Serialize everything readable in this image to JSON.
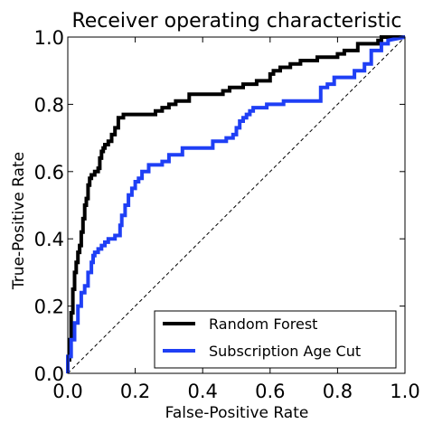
{
  "chart_data": {
    "type": "line",
    "title": "Receiver operating characteristic",
    "xlabel": "False-Positive Rate",
    "ylabel": "True-Positive Rate",
    "xlim": [
      0.0,
      1.0
    ],
    "ylim": [
      0.0,
      1.0
    ],
    "xticks": [
      "0.0",
      "0.2",
      "0.4",
      "0.6",
      "0.8",
      "1.0"
    ],
    "yticks": [
      "0.0",
      "0.2",
      "0.4",
      "0.6",
      "0.8",
      "1.0"
    ],
    "grid": false,
    "legend_position": "lower-right",
    "diagonal": {
      "style": "dashed",
      "color": "#000000",
      "x": [
        0.0,
        1.0
      ],
      "y": [
        0.0,
        1.0
      ]
    },
    "series": [
      {
        "name": "Random Forest",
        "color": "#000000",
        "x": [
          0.0,
          0.0,
          0.005,
          0.005,
          0.01,
          0.01,
          0.015,
          0.015,
          0.02,
          0.02,
          0.025,
          0.025,
          0.03,
          0.03,
          0.035,
          0.035,
          0.04,
          0.04,
          0.045,
          0.045,
          0.05,
          0.05,
          0.055,
          0.055,
          0.06,
          0.06,
          0.065,
          0.065,
          0.07,
          0.07,
          0.075,
          0.075,
          0.08,
          0.08,
          0.09,
          0.09,
          0.095,
          0.095,
          0.1,
          0.1,
          0.105,
          0.105,
          0.11,
          0.11,
          0.12,
          0.12,
          0.13,
          0.13,
          0.14,
          0.14,
          0.15,
          0.15,
          0.165,
          0.165,
          0.195,
          0.195,
          0.26,
          0.26,
          0.28,
          0.28,
          0.3,
          0.3,
          0.32,
          0.32,
          0.36,
          0.36,
          0.46,
          0.46,
          0.48,
          0.48,
          0.52,
          0.52,
          0.56,
          0.56,
          0.6,
          0.6,
          0.61,
          0.61,
          0.63,
          0.63,
          0.66,
          0.66,
          0.69,
          0.69,
          0.74,
          0.74,
          0.8,
          0.8,
          0.82,
          0.82,
          0.86,
          0.86,
          0.92,
          0.92,
          0.93,
          0.93,
          1.0
        ],
        "y": [
          0.0,
          0.04,
          0.04,
          0.1,
          0.1,
          0.18,
          0.18,
          0.25,
          0.25,
          0.3,
          0.3,
          0.33,
          0.33,
          0.36,
          0.36,
          0.38,
          0.38,
          0.42,
          0.42,
          0.46,
          0.46,
          0.5,
          0.5,
          0.52,
          0.52,
          0.56,
          0.56,
          0.58,
          0.58,
          0.59,
          0.59,
          0.59,
          0.59,
          0.6,
          0.6,
          0.61,
          0.61,
          0.64,
          0.64,
          0.66,
          0.66,
          0.67,
          0.67,
          0.68,
          0.68,
          0.69,
          0.69,
          0.71,
          0.71,
          0.73,
          0.73,
          0.76,
          0.76,
          0.77,
          0.77,
          0.77,
          0.77,
          0.78,
          0.78,
          0.79,
          0.79,
          0.8,
          0.8,
          0.81,
          0.81,
          0.83,
          0.83,
          0.84,
          0.84,
          0.85,
          0.85,
          0.86,
          0.86,
          0.87,
          0.87,
          0.89,
          0.89,
          0.9,
          0.9,
          0.91,
          0.91,
          0.92,
          0.92,
          0.93,
          0.93,
          0.94,
          0.94,
          0.95,
          0.95,
          0.96,
          0.96,
          0.98,
          0.98,
          0.99,
          0.99,
          1.0,
          1.0
        ]
      },
      {
        "name": "Subscription Age Cut",
        "color": "#1f3ff5",
        "x": [
          0.0,
          0.0,
          0.01,
          0.01,
          0.02,
          0.02,
          0.03,
          0.03,
          0.04,
          0.04,
          0.05,
          0.05,
          0.06,
          0.06,
          0.07,
          0.07,
          0.075,
          0.075,
          0.08,
          0.08,
          0.09,
          0.09,
          0.1,
          0.1,
          0.11,
          0.11,
          0.12,
          0.12,
          0.14,
          0.14,
          0.155,
          0.155,
          0.16,
          0.16,
          0.17,
          0.17,
          0.18,
          0.18,
          0.19,
          0.19,
          0.2,
          0.2,
          0.21,
          0.21,
          0.22,
          0.22,
          0.23,
          0.23,
          0.24,
          0.24,
          0.28,
          0.28,
          0.3,
          0.3,
          0.34,
          0.34,
          0.38,
          0.38,
          0.43,
          0.43,
          0.47,
          0.47,
          0.49,
          0.49,
          0.5,
          0.5,
          0.51,
          0.51,
          0.52,
          0.52,
          0.53,
          0.53,
          0.54,
          0.54,
          0.55,
          0.55,
          0.56,
          0.56,
          0.59,
          0.59,
          0.64,
          0.64,
          0.72,
          0.72,
          0.75,
          0.75,
          0.77,
          0.77,
          0.79,
          0.79,
          0.85,
          0.85,
          0.88,
          0.88,
          0.9,
          0.9,
          0.93,
          0.93,
          0.95,
          0.95,
          1.0
        ],
        "y": [
          0.0,
          0.05,
          0.05,
          0.1,
          0.1,
          0.15,
          0.15,
          0.2,
          0.2,
          0.24,
          0.24,
          0.26,
          0.26,
          0.3,
          0.3,
          0.33,
          0.33,
          0.35,
          0.35,
          0.36,
          0.36,
          0.37,
          0.37,
          0.38,
          0.38,
          0.39,
          0.39,
          0.4,
          0.4,
          0.41,
          0.41,
          0.44,
          0.44,
          0.47,
          0.47,
          0.5,
          0.5,
          0.53,
          0.53,
          0.55,
          0.55,
          0.57,
          0.57,
          0.58,
          0.58,
          0.6,
          0.6,
          0.6,
          0.6,
          0.62,
          0.62,
          0.63,
          0.63,
          0.65,
          0.65,
          0.67,
          0.67,
          0.67,
          0.67,
          0.69,
          0.69,
          0.7,
          0.7,
          0.71,
          0.71,
          0.73,
          0.73,
          0.75,
          0.75,
          0.76,
          0.76,
          0.77,
          0.77,
          0.78,
          0.78,
          0.79,
          0.79,
          0.79,
          0.79,
          0.8,
          0.8,
          0.81,
          0.81,
          0.81,
          0.81,
          0.85,
          0.85,
          0.86,
          0.86,
          0.88,
          0.88,
          0.9,
          0.9,
          0.92,
          0.92,
          0.96,
          0.96,
          0.98,
          0.98,
          0.99,
          1.0
        ]
      }
    ]
  },
  "colors": {
    "background": "#ffffff",
    "axes": "#000000"
  }
}
